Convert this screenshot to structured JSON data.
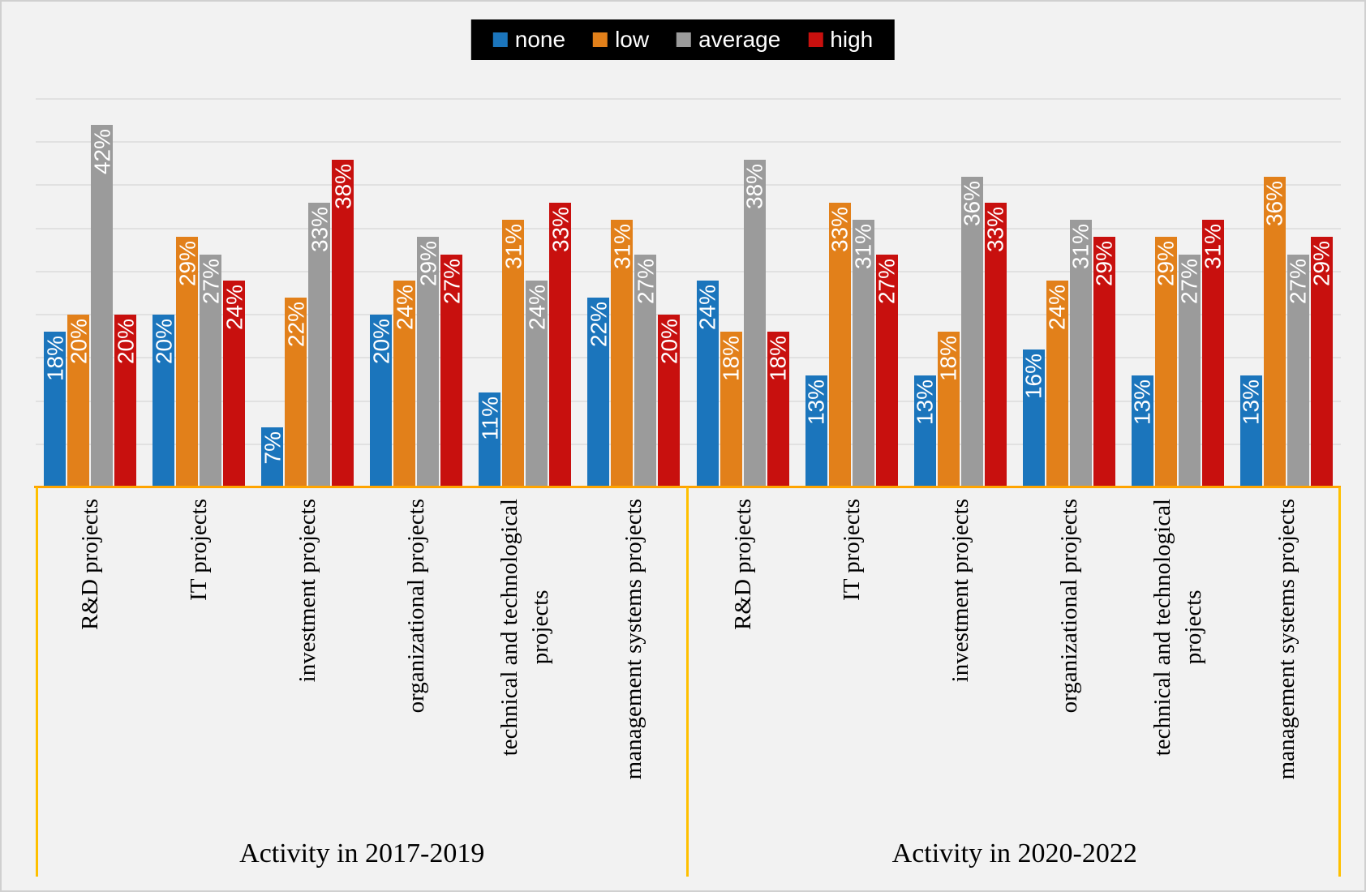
{
  "legend": {
    "items": [
      {
        "label": "none",
        "color": "#1b75bc"
      },
      {
        "label": "low",
        "color": "#e2801a"
      },
      {
        "label": "average",
        "color": "#9b9b9b"
      },
      {
        "label": "high",
        "color": "#c8100e"
      }
    ],
    "background": "#000000",
    "text_color": "#ffffff"
  },
  "chart_data": {
    "type": "bar",
    "title": "",
    "value_suffix": "%",
    "ylim": [
      0,
      45
    ],
    "gridline_step": 5,
    "grid": true,
    "legend_position": "top-center",
    "series_order": [
      "none",
      "low",
      "average",
      "high"
    ],
    "groups": [
      {
        "label": "Activity in 2017-2019",
        "categories": [
          {
            "label": "R&D projects",
            "values": [
              18,
              20,
              42,
              20
            ]
          },
          {
            "label": "IT projects",
            "values": [
              20,
              29,
              27,
              24
            ]
          },
          {
            "label": "investment projects",
            "values": [
              7,
              22,
              33,
              38
            ]
          },
          {
            "label": "organizational projects",
            "values": [
              20,
              24,
              29,
              27
            ]
          },
          {
            "label": "technical and technological\nprojects",
            "values": [
              11,
              31,
              24,
              33
            ]
          },
          {
            "label": "management systems projects",
            "values": [
              22,
              31,
              27,
              20
            ]
          }
        ]
      },
      {
        "label": "Activity in 2020-2022",
        "categories": [
          {
            "label": "R&D projects",
            "values": [
              24,
              18,
              38,
              18
            ]
          },
          {
            "label": "IT projects",
            "values": [
              13,
              33,
              31,
              27
            ]
          },
          {
            "label": "investment projects",
            "values": [
              13,
              18,
              36,
              33
            ]
          },
          {
            "label": "organizational projects",
            "values": [
              16,
              24,
              31,
              29
            ]
          },
          {
            "label": "technical and technological\nprojects",
            "values": [
              13,
              29,
              27,
              31
            ]
          },
          {
            "label": "management systems projects",
            "values": [
              13,
              36,
              27,
              29
            ]
          }
        ]
      }
    ],
    "axis_color": "#ffa400",
    "box_border_color": "#ffc000",
    "gridline_color": "#e1e1e1",
    "background_color": "#f2f2f2"
  }
}
